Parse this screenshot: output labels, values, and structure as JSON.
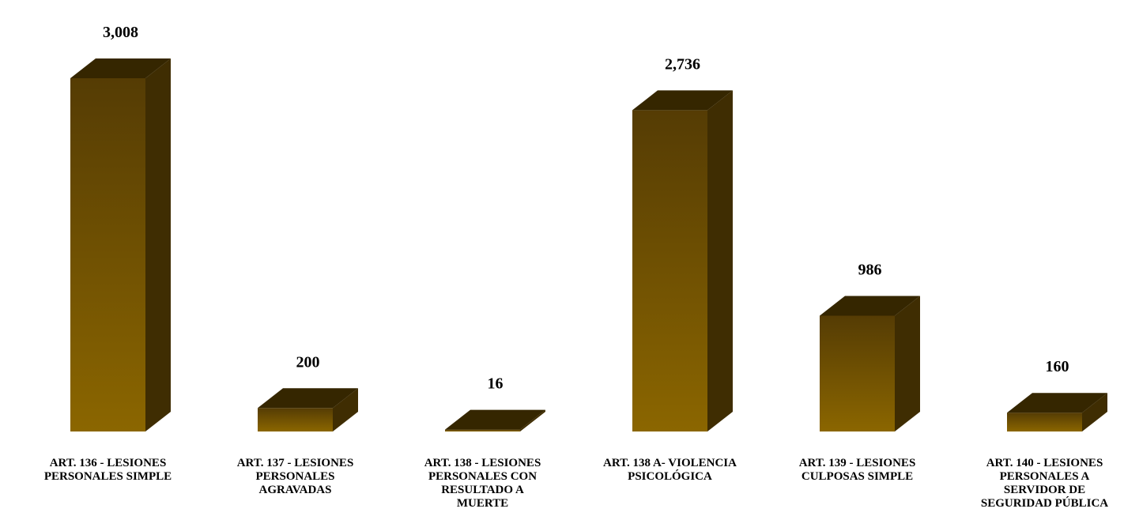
{
  "chart_data": {
    "type": "bar",
    "style": "3d-column",
    "categories": [
      "ART. 136 - LESIONES PERSONALES SIMPLE",
      "ART. 137 - LESIONES PERSONALES AGRAVADAS",
      "ART. 138 - LESIONES PERSONALES CON RESULTADO A MUERTE",
      "ART. 138 A- VIOLENCIA PSICOLÓGICA",
      "ART. 139 - LESIONES CULPOSAS SIMPLE",
      "ART. 140 - LESIONES PERSONALES A SERVIDOR DE SEGURIDAD PÚBLICA"
    ],
    "values": [
      3008,
      200,
      16,
      2736,
      986,
      160
    ],
    "value_labels": [
      "3,008",
      "200",
      "16",
      "2,736",
      "986",
      "160"
    ],
    "title": "",
    "xlabel": "",
    "ylabel": "",
    "ylim": [
      0,
      3008
    ],
    "grid": false,
    "legend": "none",
    "colors": {
      "front_top": "#553C04",
      "front_bottom": "#8B6600",
      "side": "#3F2D02",
      "top": "#352600"
    }
  }
}
